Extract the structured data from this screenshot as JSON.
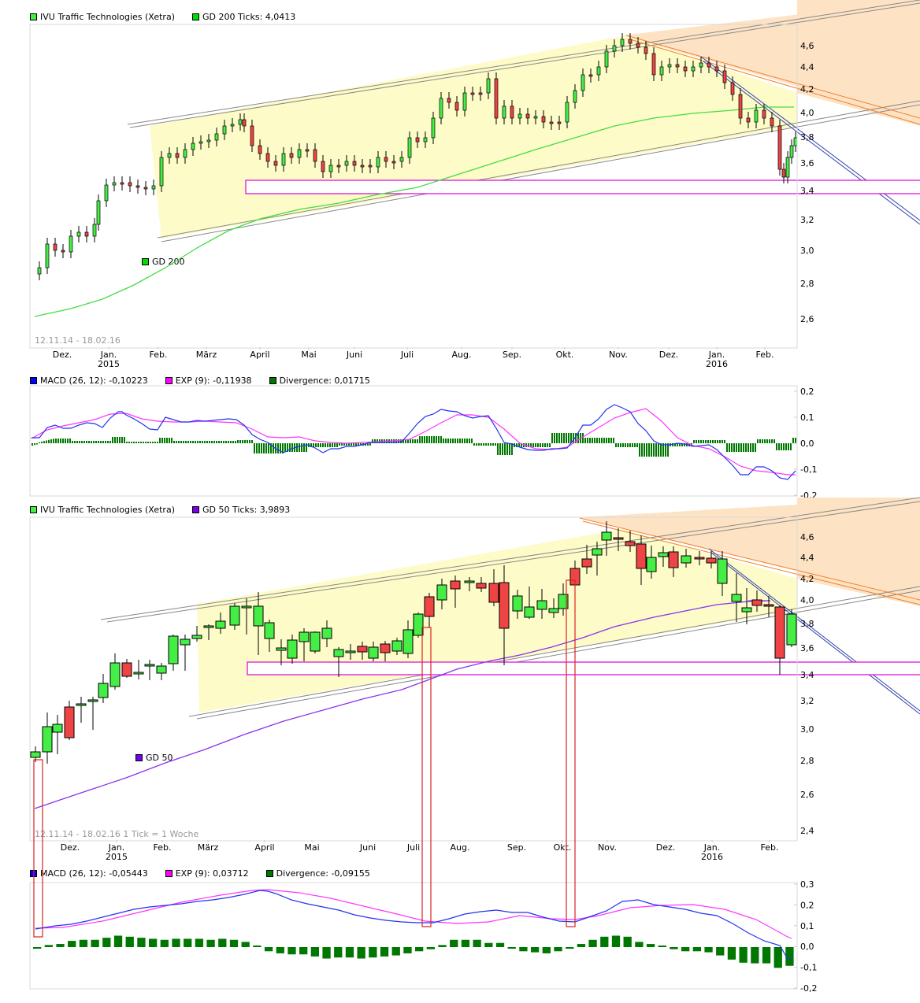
{
  "chart_data": [
    {
      "type": "candlestick",
      "id": "daily-price",
      "title": "IVU Traffic Technologies (Xetra)",
      "legend": [
        {
          "label": "IVU Traffic Technologies (Xetra)",
          "color": "#33ee33"
        },
        {
          "label": "GD 200 Ticks: 4,0413",
          "color": "#00dd00"
        }
      ],
      "indicator_label": "GD 200",
      "date_range": "12.11.14 - 18.02.16",
      "x_ticks": [
        "Dez.",
        "Jan.\n2015",
        "Feb.",
        "März",
        "April",
        "Mai",
        "Juni",
        "Juli",
        "Aug.",
        "Sep.",
        "Okt.",
        "Nov.",
        "Dez.",
        "Jan.\n2016",
        "Feb."
      ],
      "y_ticks": [
        "4,6",
        "4,4",
        "4,2",
        "4,0",
        "3,8",
        "3,6",
        "3,4",
        "3,2",
        "3,0",
        "2,8",
        "2,6"
      ],
      "ylim": [
        2.5,
        4.75
      ],
      "gd200_last": 4.0413,
      "support_zone": [
        3.39,
        3.48
      ],
      "approx_closes_monthly": [
        2.85,
        3.45,
        3.8,
        3.95,
        3.7,
        3.6,
        3.75,
        4.0,
        4.2,
        3.9,
        4.1,
        4.6,
        4.45,
        4.1,
        3.65
      ]
    },
    {
      "type": "line",
      "id": "daily-macd",
      "legend": [
        {
          "label": "MACD (26, 12): -0,10223",
          "color": "#0000ff"
        },
        {
          "label": "EXP (9): -0,11938",
          "color": "#ff00ff"
        },
        {
          "label": "Divergence: 0,01715",
          "color": "#007700"
        }
      ],
      "y_ticks": [
        "0,2",
        "0,1",
        "0,0",
        "-0,1",
        "-0,2"
      ],
      "ylim": [
        -0.2,
        0.2
      ],
      "macd": -0.10223,
      "exp": -0.11938,
      "divergence": 0.01715
    },
    {
      "type": "candlestick",
      "id": "weekly-price",
      "title": "IVU Traffic Technologies (Xetra)",
      "legend": [
        {
          "label": "IVU Traffic Technologies (Xetra)",
          "color": "#33ee33"
        },
        {
          "label": "GD 50 Ticks: 3,9893",
          "color": "#7700ee"
        }
      ],
      "indicator_label": "GD 50",
      "date_range": "12.11.14 - 18.02.16   1 Tick = 1 Woche",
      "x_ticks": [
        "Dez.",
        "Jan.\n2015",
        "Feb.",
        "März",
        "April",
        "Mai",
        "Juni",
        "Juli",
        "Aug.",
        "Sep.",
        "Okt.",
        "Nov.",
        "Dez.",
        "Jan.\n2016",
        "Feb."
      ],
      "y_ticks": [
        "4,6",
        "4,4",
        "4,2",
        "4,0",
        "3,8",
        "3,6",
        "3,4",
        "3,2",
        "3,0",
        "2,8",
        "2,6",
        "2,4"
      ],
      "ylim": [
        2.35,
        4.75
      ],
      "gd50_last": 3.9893,
      "support_zone": [
        3.39,
        3.48
      ]
    },
    {
      "type": "line",
      "id": "weekly-macd",
      "legend": [
        {
          "label": "MACD (26, 12): -0,05443",
          "color": "#0000ff"
        },
        {
          "label": "EXP (9): 0,03712",
          "color": "#ff00ff"
        },
        {
          "label": "Divergence: -0,09155",
          "color": "#007700"
        }
      ],
      "y_ticks": [
        "0,3",
        "0,2",
        "0,1",
        "0,0",
        "-0,1",
        "-0,2"
      ],
      "ylim": [
        -0.2,
        0.3
      ],
      "macd": -0.05443,
      "exp": 0.03712,
      "divergence": -0.09155,
      "divergence_bars": [
        0.0,
        0.01,
        0.015,
        0.03,
        0.035,
        0.035,
        0.045,
        0.055,
        0.05,
        0.045,
        0.04,
        0.035,
        0.04,
        0.04,
        0.04,
        0.035,
        0.04,
        0.035,
        0.025,
        0.005,
        -0.02,
        -0.03,
        -0.035,
        -0.035,
        -0.045,
        -0.055,
        -0.05,
        -0.05,
        -0.055,
        -0.05,
        -0.045,
        -0.04,
        -0.03,
        -0.02,
        -0.01,
        0.01,
        0.035,
        0.035,
        0.035,
        0.02,
        0.02,
        0.0,
        -0.02,
        -0.025,
        -0.03,
        -0.02,
        0.0,
        0.015,
        0.035,
        0.05,
        0.055,
        0.05,
        0.025,
        0.015,
        0.005,
        -0.01,
        -0.02,
        -0.02,
        -0.025,
        -0.04,
        -0.06,
        -0.075,
        -0.078,
        -0.078,
        -0.1,
        -0.09
      ]
    }
  ],
  "labels": {
    "gd200": "GD 200",
    "gd50": "GD 50"
  }
}
